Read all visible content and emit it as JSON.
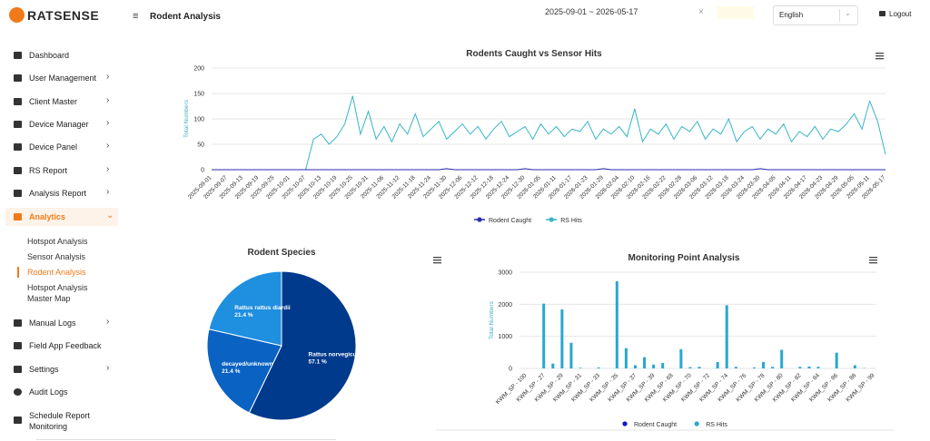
{
  "logo": "RATSENSE",
  "header": {
    "title": "Rodent Analysis",
    "date_range": "2025-09-01 ~ 2026-05-17",
    "clear": "×",
    "language": "English",
    "logout": "Logout"
  },
  "sidebar": {
    "menu": [
      "Dashboard",
      "User Management",
      "Client Master",
      "Device Manager",
      "Device Panel",
      "RS Report",
      "Analysis Report",
      "Analytics"
    ],
    "submenu": [
      "Hotspot Analysis",
      "Sensor Analysis",
      "Rodent Analysis",
      "Hotspot Analysis Master Map"
    ],
    "menu_after": [
      "Manual Logs",
      "Field App Feedback",
      "Settings",
      "Audit Logs",
      "Schedule Report Monitoring"
    ]
  },
  "chart_data": [
    {
      "type": "line",
      "title": "Rodents Caught vs Sensor Hits",
      "y_label": "Total Numbers",
      "categories": [
        "2025-09-01",
        null,
        "2025-09-07",
        null,
        "2025-09-13",
        null,
        "2025-09-19",
        null,
        "2025-09-25",
        null,
        "2025-10-01",
        null,
        "2025-10-07",
        null,
        "2025-10-13",
        null,
        "2025-10-19",
        null,
        "2025-10-25",
        null,
        "2025-10-31",
        null,
        "2025-11-06",
        null,
        "2025-11-12",
        null,
        "2025-11-18",
        null,
        "2025-11-24",
        null,
        "2025-11-30",
        null,
        "2025-12-06",
        null,
        "2025-12-12",
        null,
        "2025-12-18",
        null,
        "2025-12-24",
        null,
        "2025-12-30",
        null,
        "2026-01-05",
        null,
        "2026-01-11",
        null,
        "2026-01-17",
        null,
        "2026-01-23",
        null,
        "2026-01-29",
        null,
        "2026-02-04",
        null,
        "2026-02-10",
        null,
        "2026-02-16",
        null,
        "2026-02-22",
        null,
        "2026-02-28",
        null,
        "2026-03-06",
        null,
        "2026-03-12",
        null,
        "2026-03-18",
        null,
        "2026-03-24",
        null,
        "2026-03-30",
        null,
        "2026-04-05",
        null,
        "2026-04-11",
        null,
        "2026-04-17",
        null,
        "2026-04-23",
        null,
        "2026-04-29",
        null,
        "2026-05-05",
        null,
        "2026-05-11",
        null,
        "2026-05-17"
      ],
      "series": [
        {
          "name": "Rodent Caught",
          "color": "#2b2bb0",
          "values": [
            0,
            0,
            0,
            0,
            0,
            0,
            0,
            0,
            0,
            0,
            0,
            0,
            0,
            0,
            0,
            0,
            0,
            0,
            0,
            0,
            0,
            0,
            0,
            0,
            0,
            0,
            0,
            0,
            0,
            0,
            2,
            0,
            0,
            0,
            0,
            0,
            0,
            0,
            0,
            0,
            2,
            0,
            0,
            0,
            0,
            0,
            0,
            0,
            0,
            0,
            2,
            0,
            0,
            0,
            0,
            0,
            0,
            0,
            0,
            0,
            0,
            0,
            0,
            0,
            0,
            0,
            0,
            0,
            0,
            0,
            2,
            0,
            0,
            0,
            0,
            0,
            0,
            0,
            0,
            0,
            0,
            0,
            0,
            0,
            0,
            0,
            0
          ]
        },
        {
          "name": "RS Hits",
          "color": "#35b5c9",
          "values": [
            0,
            0,
            0,
            0,
            0,
            0,
            0,
            0,
            0,
            0,
            0,
            0,
            0,
            60,
            70,
            50,
            65,
            90,
            145,
            70,
            115,
            60,
            85,
            55,
            90,
            70,
            110,
            65,
            80,
            95,
            60,
            75,
            90,
            70,
            85,
            60,
            80,
            95,
            65,
            75,
            85,
            60,
            90,
            70,
            85,
            65,
            80,
            75,
            95,
            60,
            80,
            70,
            85,
            65,
            120,
            55,
            80,
            70,
            90,
            60,
            85,
            75,
            95,
            60,
            80,
            70,
            100,
            55,
            75,
            85,
            60,
            80,
            70,
            90,
            55,
            75,
            65,
            85,
            60,
            80,
            75,
            90,
            110,
            80,
            135,
            95,
            30
          ]
        }
      ],
      "ylim": [
        0,
        200
      ],
      "yticks": [
        0,
        50,
        100,
        150,
        200
      ],
      "grid": true
    },
    {
      "type": "pie",
      "title": "Rodent Species",
      "categories": [
        "Rattus norvegicus",
        "decayed/unknown",
        "Rattus rattus diardii"
      ],
      "values": [
        57.1,
        21.4,
        21.4
      ],
      "value_labels": [
        "57.1 %",
        "21.4 %",
        "21.4 %"
      ],
      "colors": [
        "#003a8c",
        "#0a62c2",
        "#1f8fe0"
      ]
    },
    {
      "type": "bar",
      "title": "Monitoring Point Analysis",
      "y_label": "Total Numbers",
      "categories": [
        "KWM_SP - 100",
        null,
        "KWM_SP - 27",
        null,
        "KWM_SP - 29",
        null,
        "KWM_SP - 31",
        null,
        "KWM_SP - 33",
        null,
        "KWM_SP - 35",
        null,
        "KWM_SP - 37",
        null,
        "KWM_SP - 39",
        null,
        "KWM_SP - 68",
        null,
        "KWM_SP - 70",
        null,
        "KWM_SP - 72",
        null,
        "KWM_SP - 74",
        null,
        "KWM_SP - 76",
        null,
        "KWM_SP - 78",
        null,
        "KWM_SP - 80",
        null,
        "KWM_SP - 82",
        null,
        "KWM_SP - 84",
        null,
        "KWM_SP - 86",
        null,
        "KWM_SP - 88",
        null,
        "KWM_SP - 99"
      ],
      "series": [
        {
          "name": "Rodent Caught",
          "color": "#0a14c8",
          "values": [
            0,
            0,
            0,
            0,
            0,
            0,
            0,
            0,
            0,
            0,
            0,
            0,
            0,
            0,
            0,
            0,
            0,
            0,
            0,
            0,
            0,
            0,
            0,
            0,
            0,
            0,
            0,
            0,
            0,
            0,
            0,
            0,
            0,
            0,
            0,
            0,
            0,
            0,
            0
          ]
        },
        {
          "name": "RS Hits",
          "color": "#2aa7cf",
          "values": [
            0,
            0,
            2020,
            150,
            1840,
            800,
            20,
            0,
            30,
            0,
            2720,
            630,
            100,
            350,
            120,
            170,
            0,
            600,
            40,
            50,
            0,
            200,
            1970,
            50,
            0,
            30,
            200,
            50,
            580,
            0,
            50,
            60,
            50,
            0,
            490,
            0,
            100,
            10,
            0
          ]
        }
      ],
      "ylim": [
        0,
        3000
      ],
      "yticks": [
        0,
        1000,
        2000,
        3000
      ],
      "grid": true
    }
  ]
}
